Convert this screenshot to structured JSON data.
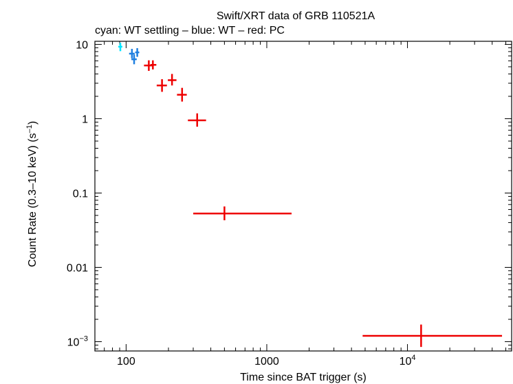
{
  "chart_data": {
    "type": "scatter",
    "title": "Swift/XRT data of GRB 110521A",
    "subtitle": "cyan: WT settling – blue: WT – red: PC",
    "xlabel": "Time since BAT trigger (s)",
    "ylabel_main": "Count Rate (0.3–10 keV) (s",
    "ylabel_sup": "–1",
    "ylabel_close": ")",
    "xscale": "log",
    "yscale": "log",
    "xlim": [
      60,
      55000
    ],
    "ylim": [
      0.00075,
      11
    ],
    "x_ticks": [
      {
        "value": 100,
        "label": "100",
        "base": "",
        "exp": ""
      },
      {
        "value": 1000,
        "label": "1000",
        "base": "",
        "exp": ""
      },
      {
        "value": 10000,
        "label": "",
        "base": "10",
        "exp": "4"
      }
    ],
    "y_ticks": [
      {
        "value": 10,
        "label": "10",
        "base": "",
        "exp": ""
      },
      {
        "value": 1,
        "label": "1",
        "base": "",
        "exp": ""
      },
      {
        "value": 0.1,
        "label": "0.1",
        "base": "",
        "exp": ""
      },
      {
        "value": 0.01,
        "label": "0.01",
        "base": "",
        "exp": ""
      },
      {
        "value": 0.001,
        "label": "",
        "base": "10",
        "exp": "−3"
      }
    ],
    "series": [
      {
        "color": "#00e5ff",
        "points": [
          {
            "x": 91,
            "xlo": 88,
            "xhi": 94,
            "y": 9.3,
            "ylo": 8.1,
            "yhi": 10.5
          }
        ]
      },
      {
        "color": "#1e7fe0",
        "points": [
          {
            "x": 110,
            "xlo": 105,
            "xhi": 115,
            "y": 7.5,
            "ylo": 6.5,
            "yhi": 8.7
          },
          {
            "x": 114,
            "xlo": 109,
            "xhi": 119,
            "y": 6.3,
            "ylo": 5.4,
            "yhi": 7.3
          },
          {
            "x": 120,
            "xlo": 116,
            "xhi": 124,
            "y": 7.8,
            "ylo": 6.8,
            "yhi": 8.9
          }
        ]
      },
      {
        "color": "#ee0000",
        "points": [
          {
            "x": 145,
            "xlo": 134,
            "xhi": 153,
            "y": 5.2,
            "ylo": 4.4,
            "yhi": 6.1
          },
          {
            "x": 155,
            "xlo": 149,
            "xhi": 164,
            "y": 5.3,
            "ylo": 4.6,
            "yhi": 6.1
          },
          {
            "x": 180,
            "xlo": 165,
            "xhi": 195,
            "y": 2.8,
            "ylo": 2.3,
            "yhi": 3.4
          },
          {
            "x": 212,
            "xlo": 198,
            "xhi": 228,
            "y": 3.3,
            "ylo": 2.8,
            "yhi": 4.0
          },
          {
            "x": 250,
            "xlo": 230,
            "xhi": 270,
            "y": 2.1,
            "ylo": 1.7,
            "yhi": 2.6
          },
          {
            "x": 320,
            "xlo": 275,
            "xhi": 370,
            "y": 0.95,
            "ylo": 0.78,
            "yhi": 1.18
          },
          {
            "x": 500,
            "xlo": 300,
            "xhi": 1500,
            "y": 0.053,
            "ylo": 0.043,
            "yhi": 0.066
          },
          {
            "x": 12500,
            "xlo": 4800,
            "xhi": 47000,
            "y": 0.0012,
            "ylo": 0.00085,
            "yhi": 0.0017
          }
        ]
      }
    ]
  }
}
